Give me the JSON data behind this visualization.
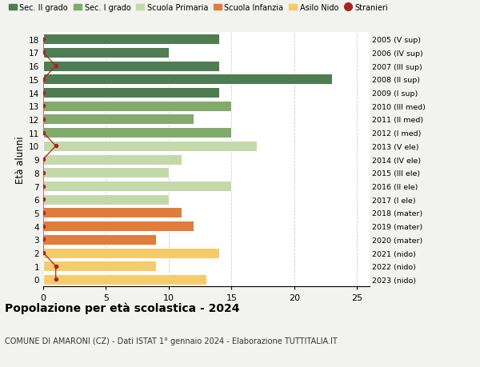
{
  "ages": [
    18,
    17,
    16,
    15,
    14,
    13,
    12,
    11,
    10,
    9,
    8,
    7,
    6,
    5,
    4,
    3,
    2,
    1,
    0
  ],
  "right_labels": [
    "2005 (V sup)",
    "2006 (IV sup)",
    "2007 (III sup)",
    "2008 (II sup)",
    "2009 (I sup)",
    "2010 (III med)",
    "2011 (II med)",
    "2012 (I med)",
    "2013 (V ele)",
    "2014 (IV ele)",
    "2015 (III ele)",
    "2016 (II ele)",
    "2017 (I ele)",
    "2018 (mater)",
    "2019 (mater)",
    "2020 (mater)",
    "2021 (nido)",
    "2022 (nido)",
    "2023 (nido)"
  ],
  "bar_values": [
    14,
    10,
    14,
    23,
    14,
    15,
    12,
    15,
    17,
    11,
    10,
    15,
    10,
    11,
    12,
    9,
    14,
    9,
    13
  ],
  "bar_colors": [
    "#4e7d51",
    "#4e7d51",
    "#4e7d51",
    "#4e7d51",
    "#4e7d51",
    "#82aa6b",
    "#82aa6b",
    "#82aa6b",
    "#c4d9aa",
    "#c4d9aa",
    "#c4d9aa",
    "#c4d9aa",
    "#c4d9aa",
    "#e07d3a",
    "#e07d3a",
    "#e07d3a",
    "#f5cc6a",
    "#f5cc6a",
    "#f5cc6a"
  ],
  "stranieri_values": [
    0,
    0,
    1,
    0,
    0,
    0,
    0,
    0,
    1,
    0,
    0,
    0,
    0,
    0,
    0,
    0,
    0,
    1,
    1
  ],
  "stranieri_color": "#aa2222",
  "legend_items": [
    {
      "label": "Sec. II grado",
      "color": "#4e7d51"
    },
    {
      "label": "Sec. I grado",
      "color": "#82aa6b"
    },
    {
      "label": "Scuola Primaria",
      "color": "#c4d9aa"
    },
    {
      "label": "Scuola Infanzia",
      "color": "#e07d3a"
    },
    {
      "label": "Asilo Nido",
      "color": "#f5cc6a"
    },
    {
      "label": "Stranieri",
      "color": "#aa2222"
    }
  ],
  "ylabel_left": "Età alunni",
  "xlim": [
    0,
    26
  ],
  "xticks": [
    0,
    5,
    10,
    15,
    20,
    25
  ],
  "title": "Popolazione per età scolastica - 2024",
  "subtitle": "COMUNE DI AMARONI (CZ) - Dati ISTAT 1° gennaio 2024 - Elaborazione TUTTITALIA.IT",
  "background_color": "#f2f2ee",
  "bar_background": "#ffffff",
  "grid_color": "#cccccc"
}
